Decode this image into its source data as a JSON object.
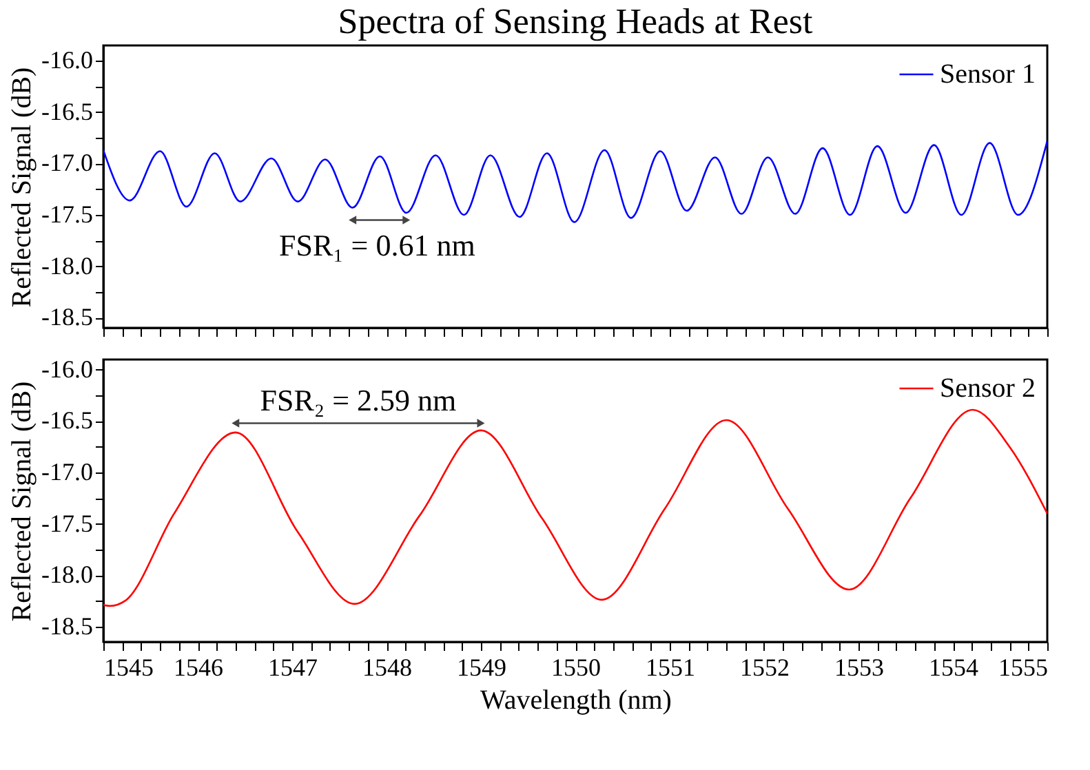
{
  "chart_data": [
    {
      "type": "line",
      "title": "Spectra of Sensing Heads at Rest",
      "ylabel": "Reflected Signal (dB)",
      "series": [
        {
          "name": "Sensor 1",
          "color": "#0000ff",
          "x": [
            1545.0,
            1545.28,
            1545.6,
            1545.88,
            1546.18,
            1546.45,
            1546.78,
            1547.06,
            1547.35,
            1547.64,
            1547.93,
            1548.21,
            1548.52,
            1548.82,
            1549.1,
            1549.41,
            1549.7,
            1549.99,
            1550.31,
            1550.59,
            1550.9,
            1551.18,
            1551.48,
            1551.76,
            1552.04,
            1552.33,
            1552.62,
            1552.91,
            1553.2,
            1553.5,
            1553.8,
            1554.09,
            1554.39,
            1554.69,
            1555.0
          ],
          "values": [
            -16.87,
            -17.36,
            -16.88,
            -17.42,
            -16.9,
            -17.37,
            -16.95,
            -17.37,
            -16.96,
            -17.43,
            -16.93,
            -17.48,
            -16.92,
            -17.5,
            -16.92,
            -17.52,
            -16.9,
            -17.57,
            -16.87,
            -17.53,
            -16.88,
            -17.46,
            -16.94,
            -17.49,
            -16.94,
            -17.49,
            -16.85,
            -17.5,
            -16.83,
            -17.48,
            -16.82,
            -17.5,
            -16.8,
            -17.5,
            -16.78
          ]
        }
      ],
      "annotations": [
        "FSR₁ =  0.61 nm"
      ],
      "xlim": [
        1545,
        1555
      ],
      "xticks": [
        1545,
        {
          "value": 1545.2,
          "label": null
        },
        {
          "value": 1545.4,
          "label": null
        },
        {
          "value": 1545.6,
          "label": null
        },
        {
          "value": 1545.8,
          "label": null
        },
        1546,
        {
          "value": 1546.2,
          "label": null
        },
        {
          "value": 1546.4,
          "label": null
        },
        {
          "value": 1546.6,
          "label": null
        },
        {
          "value": 1546.8,
          "label": null
        },
        1547,
        {
          "value": 1547.2,
          "label": null
        },
        {
          "value": 1547.4,
          "label": null
        },
        {
          "value": 1547.6,
          "label": null
        },
        {
          "value": 1547.8,
          "label": null
        },
        1548,
        {
          "value": 1548.2,
          "label": null
        },
        {
          "value": 1548.4,
          "label": null
        },
        {
          "value": 1548.6,
          "label": null
        },
        {
          "value": 1548.8,
          "label": null
        },
        1549,
        {
          "value": 1549.2,
          "label": null
        },
        {
          "value": 1549.4,
          "label": null
        },
        {
          "value": 1549.6,
          "label": null
        },
        {
          "value": 1549.8,
          "label": null
        },
        1550,
        {
          "value": 1550.2,
          "label": null
        },
        {
          "value": 1550.4,
          "label": null
        },
        {
          "value": 1550.6,
          "label": null
        },
        {
          "value": 1550.8,
          "label": null
        },
        1551,
        {
          "value": 1551.2,
          "label": null
        },
        {
          "value": 1551.4,
          "label": null
        },
        {
          "value": 1551.6,
          "label": null
        },
        {
          "value": 1551.8,
          "label": null
        },
        1552,
        {
          "value": 1552.2,
          "label": null
        },
        {
          "value": 1552.4,
          "label": null
        },
        {
          "value": 1552.6,
          "label": null
        },
        {
          "value": 1552.8,
          "label": null
        },
        1553,
        {
          "value": 1553.2,
          "label": null
        },
        {
          "value": 1553.4,
          "label": null
        },
        {
          "value": 1553.6,
          "label": null
        },
        {
          "value": 1553.8,
          "label": null
        },
        1554,
        {
          "value": 1554.2,
          "label": null
        },
        {
          "value": 1554.4,
          "label": null
        },
        {
          "value": 1554.6,
          "label": null
        },
        {
          "value": 1554.8,
          "label": null
        },
        1555
      ],
      "ylim": [
        -18.6,
        -15.85
      ],
      "yticks": [
        {
          "value": -16,
          "label": "-16.0"
        },
        {
          "value": -16.25,
          "label": null
        },
        -16.5,
        {
          "value": -16.75,
          "label": null
        },
        {
          "value": -17,
          "label": "-17.0"
        },
        {
          "value": -17.25,
          "label": null
        },
        -17.5,
        {
          "value": -17.75,
          "label": null
        },
        {
          "value": -18,
          "label": "-18.0"
        },
        {
          "value": -18.25,
          "label": null
        },
        -18.5
      ],
      "tick_labels": "y",
      "legend": "top right"
    },
    {
      "type": "line",
      "xlabel": "Wavelength (nm)",
      "ylabel": "Reflected Signal (dB)",
      "series": [
        {
          "name": "Sensor 2",
          "color": "#ff0000",
          "x": [
            1545.0,
            1545.07,
            1545.23,
            1545.75,
            1546.4,
            1547.06,
            1547.66,
            1548.35,
            1549.0,
            1549.65,
            1550.28,
            1550.95,
            1551.6,
            1552.25,
            1552.9,
            1553.55,
            1554.21,
            1554.6,
            1555.0
          ],
          "values": [
            -18.29,
            -18.3,
            -18.25,
            -17.4,
            -16.61,
            -17.58,
            -18.28,
            -17.42,
            -16.59,
            -17.45,
            -18.24,
            -17.35,
            -16.49,
            -17.35,
            -18.14,
            -17.25,
            -16.39,
            -16.75,
            -17.4
          ]
        }
      ],
      "annotations": [
        "FSR₂ =  2.59 nm"
      ],
      "xlim": [
        1545,
        1555
      ],
      "xticks": [
        1545,
        {
          "value": 1545.2,
          "label": null
        },
        {
          "value": 1545.4,
          "label": null
        },
        {
          "value": 1545.6,
          "label": null
        },
        {
          "value": 1545.8,
          "label": null
        },
        1546,
        {
          "value": 1546.2,
          "label": null
        },
        {
          "value": 1546.4,
          "label": null
        },
        {
          "value": 1546.6,
          "label": null
        },
        {
          "value": 1546.8,
          "label": null
        },
        1547,
        {
          "value": 1547.2,
          "label": null
        },
        {
          "value": 1547.4,
          "label": null
        },
        {
          "value": 1547.6,
          "label": null
        },
        {
          "value": 1547.8,
          "label": null
        },
        1548,
        {
          "value": 1548.2,
          "label": null
        },
        {
          "value": 1548.4,
          "label": null
        },
        {
          "value": 1548.6,
          "label": null
        },
        {
          "value": 1548.8,
          "label": null
        },
        1549,
        {
          "value": 1549.2,
          "label": null
        },
        {
          "value": 1549.4,
          "label": null
        },
        {
          "value": 1549.6,
          "label": null
        },
        {
          "value": 1549.8,
          "label": null
        },
        1550,
        {
          "value": 1550.2,
          "label": null
        },
        {
          "value": 1550.4,
          "label": null
        },
        {
          "value": 1550.6,
          "label": null
        },
        {
          "value": 1550.8,
          "label": null
        },
        1551,
        {
          "value": 1551.2,
          "label": null
        },
        {
          "value": 1551.4,
          "label": null
        },
        {
          "value": 1551.6,
          "label": null
        },
        {
          "value": 1551.8,
          "label": null
        },
        1552,
        {
          "value": 1552.2,
          "label": null
        },
        {
          "value": 1552.4,
          "label": null
        },
        {
          "value": 1552.6,
          "label": null
        },
        {
          "value": 1552.8,
          "label": null
        },
        1553,
        {
          "value": 1553.2,
          "label": null
        },
        {
          "value": 1553.4,
          "label": null
        },
        {
          "value": 1553.6,
          "label": null
        },
        {
          "value": 1553.8,
          "label": null
        },
        1554,
        {
          "value": 1554.2,
          "label": null
        },
        {
          "value": 1554.4,
          "label": null
        },
        {
          "value": 1554.6,
          "label": null
        },
        {
          "value": 1554.8,
          "label": null
        },
        1555
      ],
      "ylim": [
        -18.65,
        -15.9
      ],
      "yticks": [
        {
          "value": -16,
          "label": "-16.0"
        },
        {
          "value": -16.25,
          "label": null
        },
        -16.5,
        {
          "value": -16.75,
          "label": null
        },
        {
          "value": -17,
          "label": "-17.0"
        },
        {
          "value": -17.25,
          "label": null
        },
        -17.5,
        {
          "value": -17.75,
          "label": null
        },
        {
          "value": -18,
          "label": "-18.0"
        },
        {
          "value": -18.25,
          "label": null
        },
        -18.5
      ],
      "legend": "top right"
    }
  ]
}
